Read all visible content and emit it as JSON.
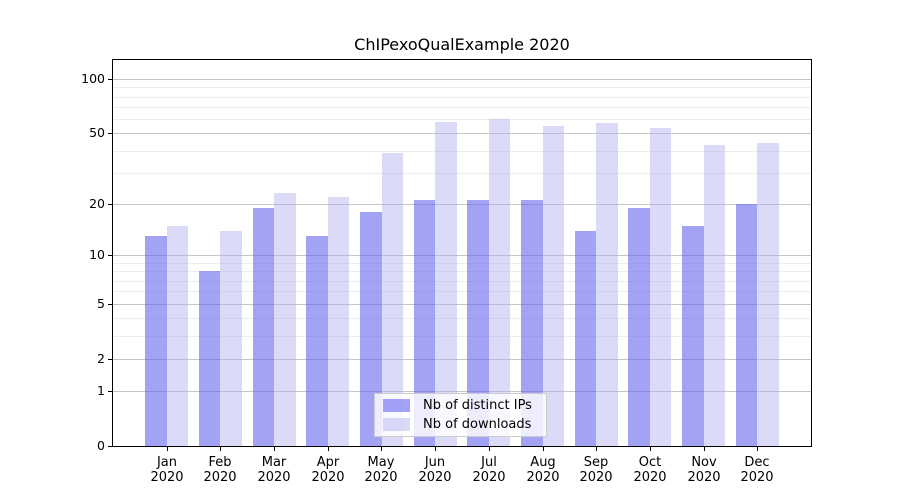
{
  "chart_data": {
    "type": "bar",
    "title": "ChIPexoQualExample 2020",
    "categories": [
      "Jan",
      "Feb",
      "Mar",
      "Apr",
      "May",
      "Jun",
      "Jul",
      "Aug",
      "Sep",
      "Oct",
      "Nov",
      "Dec"
    ],
    "category_year": "2020",
    "series": [
      {
        "name": "Nb of distinct IPs",
        "color": "#a3a3f5",
        "values": [
          13,
          8,
          19,
          13,
          18,
          21,
          21,
          21,
          14,
          19,
          15,
          20
        ]
      },
      {
        "name": "Nb of downloads",
        "color": "#dbdbf8",
        "values": [
          15,
          14,
          23,
          22,
          39,
          58,
          60,
          55,
          57,
          54,
          43,
          44
        ]
      }
    ],
    "xlabel": "",
    "ylabel": "",
    "y_scale": "log1p",
    "y_major_ticks": [
      0,
      1,
      2,
      5,
      10,
      20,
      50,
      100
    ],
    "y_minor_ticks": [
      3,
      4,
      6,
      7,
      8,
      9,
      30,
      40,
      60,
      70,
      80,
      90
    ],
    "ylim": [
      0,
      126
    ],
    "grid": true,
    "legend": {
      "position": "bottom-center"
    }
  },
  "colors": {
    "spine": "#000000",
    "grid_major": "#c6c6c6",
    "grid_minor": "#ededed",
    "legend_border": "#cccccc"
  }
}
